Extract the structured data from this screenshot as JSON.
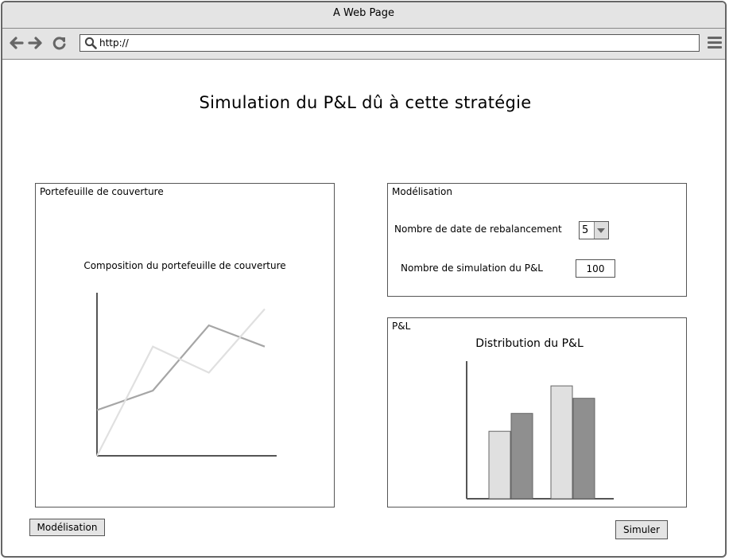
{
  "window": {
    "title": "A Web Page"
  },
  "toolbar": {
    "back_icon": "back-arrow-icon",
    "forward_icon": "forward-arrow-icon",
    "reload_icon": "reload-icon",
    "url": "http://",
    "menu_icon": "hamburger-menu-icon"
  },
  "page": {
    "title": "Simulation du P&L dû à cette stratégie"
  },
  "portfolio_panel": {
    "label": "Portefeuille de couverture",
    "chart_title": "Composition du portefeuille de couverture"
  },
  "model_panel": {
    "label": "Modélisation",
    "rebalance_label": "Nombre de date de rebalancement",
    "rebalance_value": "5",
    "simulation_label": "Nombre de simulation du P&L",
    "simulation_value": "100"
  },
  "pl_panel": {
    "label": "P&L",
    "chart_title": "Distribution du P&L"
  },
  "buttons": {
    "modelisation": "Modélisation",
    "simuler": "Simuler"
  },
  "chart_data": [
    {
      "type": "line",
      "title": "Composition du portefeuille de couverture",
      "x": [
        0,
        1,
        2,
        3
      ],
      "ylim": [
        0,
        100
      ],
      "series": [
        {
          "values": [
            28,
            40,
            80,
            67
          ],
          "color": "#a6a6a6"
        },
        {
          "values": [
            0,
            67,
            51,
            90
          ],
          "color": "#e0e0e0"
        }
      ]
    },
    {
      "type": "bar",
      "title": "Distribution du P&L",
      "categories": [
        "",
        ""
      ],
      "ylim": [
        0,
        100
      ],
      "series": [
        {
          "values": [
            49,
            82
          ],
          "color": "#e0e0e0"
        },
        {
          "values": [
            62,
            73
          ],
          "color": "#8f8f8f"
        }
      ]
    }
  ]
}
